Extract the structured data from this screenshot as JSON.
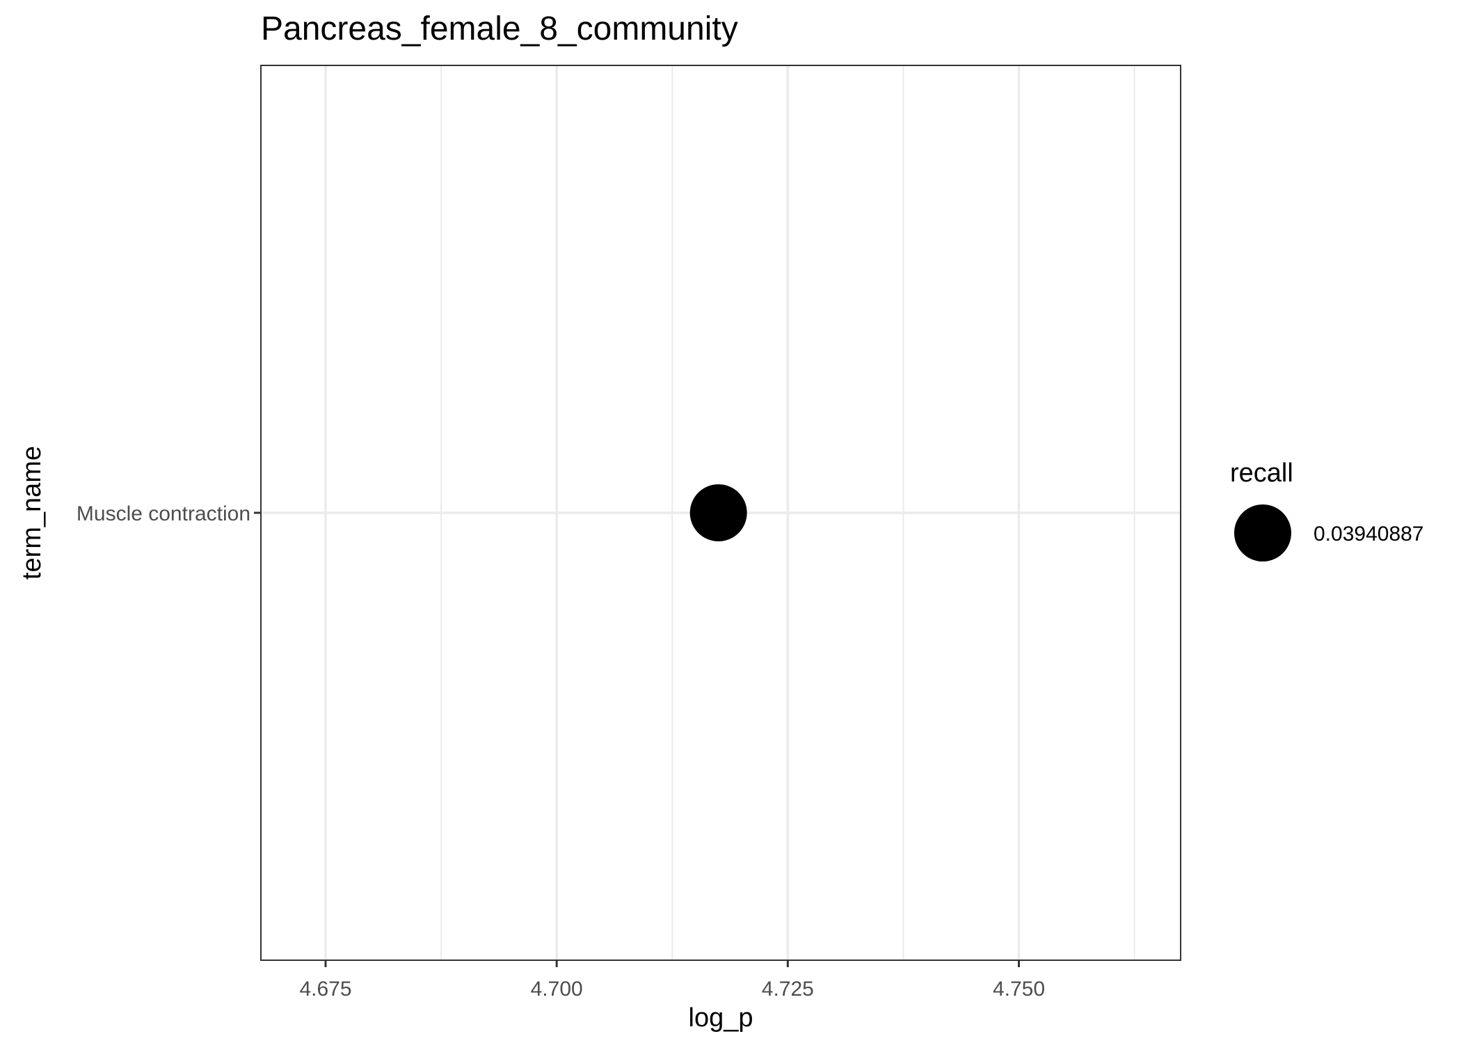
{
  "chart_data": {
    "type": "scatter",
    "title": "Pancreas_female_8_community",
    "xlabel": "log_p",
    "ylabel": "term_name",
    "categories": [
      "Muscle contraction"
    ],
    "points": [
      {
        "term_name": "Muscle contraction",
        "log_p": 4.7175,
        "recall": 0.03940887
      }
    ],
    "xlim": [
      4.668,
      4.7675
    ],
    "x_ticks": [
      "4.675",
      "4.700",
      "4.725",
      "4.750"
    ],
    "x_tick_values": [
      4.675,
      4.7,
      4.725,
      4.75
    ],
    "x_minor_values": [
      4.6875,
      4.7125,
      4.7375,
      4.7625
    ],
    "grid": true,
    "legend": {
      "title": "recall",
      "position": "right",
      "entries": [
        {
          "label": "0.03940887",
          "value": 0.03940887
        }
      ]
    },
    "colors": {
      "point": "#000000",
      "grid": "#ebebeb",
      "panel_border": "#333333",
      "tick_text": "#4d4d4d"
    }
  }
}
